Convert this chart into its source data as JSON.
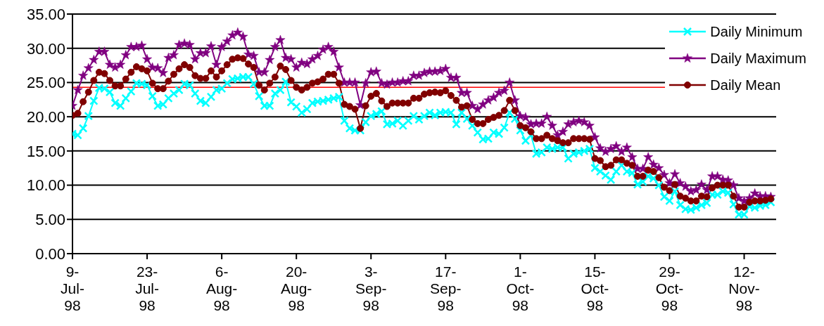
{
  "chart_data": {
    "type": "line",
    "x": [
      "1998-07-09",
      "1998-07-10",
      "1998-07-11",
      "1998-07-12",
      "1998-07-13",
      "1998-07-14",
      "1998-07-15",
      "1998-07-16",
      "1998-07-17",
      "1998-07-18",
      "1998-07-19",
      "1998-07-20",
      "1998-07-21",
      "1998-07-22",
      "1998-07-23",
      "1998-07-24",
      "1998-07-25",
      "1998-07-26",
      "1998-07-27",
      "1998-07-28",
      "1998-07-29",
      "1998-07-30",
      "1998-07-31",
      "1998-08-01",
      "1998-08-02",
      "1998-08-03",
      "1998-08-04",
      "1998-08-05",
      "1998-08-06",
      "1998-08-07",
      "1998-08-08",
      "1998-08-09",
      "1998-08-10",
      "1998-08-11",
      "1998-08-12",
      "1998-08-13",
      "1998-08-14",
      "1998-08-15",
      "1998-08-16",
      "1998-08-17",
      "1998-08-18",
      "1998-08-19",
      "1998-08-20",
      "1998-08-21",
      "1998-08-22",
      "1998-08-23",
      "1998-08-24",
      "1998-08-25",
      "1998-08-26",
      "1998-08-27",
      "1998-08-28",
      "1998-08-29",
      "1998-08-30",
      "1998-08-31",
      "1998-09-01",
      "1998-09-02",
      "1998-09-03",
      "1998-09-04",
      "1998-09-05",
      "1998-09-06",
      "1998-09-07",
      "1998-09-08",
      "1998-09-09",
      "1998-09-10",
      "1998-09-11",
      "1998-09-12",
      "1998-09-13",
      "1998-09-14",
      "1998-09-15",
      "1998-09-16",
      "1998-09-17",
      "1998-09-18",
      "1998-09-19",
      "1998-09-20",
      "1998-09-21",
      "1998-09-22",
      "1998-09-23",
      "1998-09-24",
      "1998-09-25",
      "1998-09-26",
      "1998-09-27",
      "1998-09-28",
      "1998-09-29",
      "1998-09-30",
      "1998-10-01",
      "1998-10-02",
      "1998-10-03",
      "1998-10-04",
      "1998-10-05",
      "1998-10-06",
      "1998-10-07",
      "1998-10-08",
      "1998-10-09",
      "1998-10-10",
      "1998-10-11",
      "1998-10-12",
      "1998-10-13",
      "1998-10-14",
      "1998-10-15",
      "1998-10-16",
      "1998-10-17",
      "1998-10-18",
      "1998-10-19",
      "1998-10-20",
      "1998-10-21",
      "1998-10-22",
      "1998-10-23",
      "1998-10-24",
      "1998-10-25",
      "1998-10-26",
      "1998-10-27",
      "1998-10-28",
      "1998-10-29",
      "1998-10-30",
      "1998-10-31",
      "1998-11-01",
      "1998-11-02",
      "1998-11-03",
      "1998-11-04",
      "1998-11-05",
      "1998-11-06",
      "1998-11-07",
      "1998-11-08",
      "1998-11-09",
      "1998-11-10",
      "1998-11-11",
      "1998-11-12",
      "1998-11-13",
      "1998-11-14",
      "1998-11-15",
      "1998-11-16",
      "1998-11-17"
    ],
    "series": [
      {
        "name": "Daily Minimum",
        "color": "#00ffff",
        "marker": "cross",
        "values": [
          17.5,
          17.3,
          18.3,
          20.1,
          22.3,
          24.2,
          24.1,
          23.6,
          22.0,
          21.6,
          22.7,
          23.7,
          24.9,
          24.8,
          24.6,
          23.0,
          21.6,
          21.8,
          22.7,
          23.4,
          23.9,
          24.8,
          24.6,
          23.4,
          22.3,
          22.0,
          22.9,
          23.9,
          24.1,
          24.9,
          25.5,
          25.6,
          25.8,
          25.8,
          24.8,
          23.0,
          21.6,
          21.6,
          23.4,
          23.9,
          25.1,
          22.1,
          21.5,
          20.6,
          21.1,
          22.0,
          22.2,
          22.3,
          22.5,
          22.7,
          22.9,
          19.4,
          18.3,
          18.0,
          18.0,
          19.2,
          20.1,
          20.4,
          20.8,
          18.9,
          19.0,
          19.4,
          18.7,
          19.4,
          20.1,
          19.6,
          20.1,
          20.6,
          20.2,
          20.6,
          20.7,
          20.6,
          18.9,
          20.6,
          19.7,
          18.7,
          17.7,
          16.7,
          16.8,
          17.7,
          17.5,
          18.4,
          20.6,
          19.7,
          18.0,
          16.5,
          17.3,
          14.6,
          14.8,
          15.5,
          15.3,
          15.5,
          15.5,
          13.9,
          14.6,
          14.8,
          15.0,
          15.3,
          12.5,
          12.0,
          11.4,
          10.8,
          12.0,
          12.9,
          12.0,
          11.8,
          10.1,
          10.5,
          11.3,
          11.0,
          10.0,
          8.3,
          7.7,
          9.1,
          7.1,
          6.5,
          6.4,
          6.7,
          7.1,
          7.4,
          8.6,
          8.6,
          9.1,
          8.9,
          7.2,
          5.7,
          5.7,
          6.9,
          6.7,
          7.0,
          7.1,
          7.5
        ]
      },
      {
        "name": "Daily Maximum",
        "color": "#800080",
        "marker": "star",
        "values": [
          21.6,
          23.9,
          26.0,
          27.1,
          28.3,
          29.5,
          29.5,
          27.6,
          27.2,
          27.6,
          29.0,
          30.2,
          30.2,
          30.4,
          28.4,
          27.2,
          27.1,
          26.4,
          28.6,
          29.0,
          30.5,
          30.7,
          30.5,
          28.4,
          29.3,
          29.3,
          30.3,
          27.6,
          30.2,
          31.0,
          31.9,
          32.3,
          31.7,
          29.1,
          28.9,
          26.5,
          26.5,
          28.3,
          30.2,
          31.2,
          28.6,
          28.4,
          27.2,
          27.9,
          27.7,
          28.4,
          28.9,
          29.8,
          30.2,
          29.5,
          27.2,
          25.0,
          25.0,
          25.0,
          21.7,
          24.9,
          26.5,
          26.6,
          24.9,
          24.7,
          25.0,
          25.0,
          25.2,
          25.2,
          26.0,
          26.0,
          26.4,
          26.6,
          26.6,
          26.7,
          27.0,
          25.7,
          25.7,
          23.5,
          23.5,
          21.6,
          21.1,
          21.8,
          22.4,
          22.8,
          23.5,
          23.8,
          25.0,
          22.4,
          20.1,
          19.9,
          18.9,
          19.0,
          19.0,
          20.0,
          18.7,
          17.3,
          17.8,
          18.9,
          19.2,
          19.4,
          19.2,
          18.7,
          17.0,
          15.4,
          14.9,
          15.3,
          15.7,
          14.9,
          15.5,
          14.1,
          12.4,
          12.4,
          14.1,
          13.0,
          12.5,
          11.5,
          10.3,
          11.6,
          10.3,
          9.8,
          9.1,
          9.3,
          10.1,
          9.3,
          11.3,
          11.3,
          10.8,
          10.7,
          10.0,
          8.1,
          7.7,
          8.1,
          8.8,
          8.4,
          8.4,
          8.3
        ]
      },
      {
        "name": "Daily Mean",
        "color": "#800000",
        "marker": "circle",
        "values": [
          20.2,
          20.5,
          22.2,
          23.6,
          25.3,
          26.5,
          26.3,
          25.3,
          24.5,
          24.5,
          25.5,
          26.5,
          27.3,
          27.0,
          26.7,
          24.9,
          24.1,
          24.1,
          25.2,
          26.2,
          27.0,
          27.6,
          27.2,
          26.0,
          25.6,
          25.6,
          26.7,
          25.8,
          26.7,
          27.6,
          28.4,
          28.6,
          28.5,
          27.7,
          27.2,
          24.6,
          23.9,
          24.9,
          25.8,
          27.4,
          26.9,
          25.3,
          24.3,
          23.9,
          24.3,
          24.9,
          25.1,
          25.5,
          26.2,
          26.2,
          24.9,
          21.8,
          21.5,
          21.1,
          18.3,
          21.6,
          23.0,
          23.4,
          22.3,
          21.5,
          22.0,
          22.0,
          22.0,
          22.0,
          22.7,
          22.7,
          23.3,
          23.5,
          23.6,
          23.5,
          23.8,
          23.1,
          22.4,
          21.4,
          21.6,
          19.6,
          19.0,
          19.0,
          19.6,
          19.9,
          20.2,
          20.9,
          22.4,
          20.9,
          18.7,
          18.4,
          17.8,
          16.8,
          16.8,
          17.3,
          16.8,
          16.5,
          16.2,
          16.2,
          16.8,
          16.8,
          16.8,
          16.7,
          13.9,
          13.6,
          12.7,
          12.9,
          13.7,
          13.7,
          13.2,
          12.9,
          11.3,
          11.3,
          12.2,
          12.0,
          11.1,
          9.7,
          9.2,
          10.1,
          8.4,
          8.1,
          7.7,
          7.7,
          8.4,
          8.3,
          9.6,
          10.0,
          10.0,
          10.0,
          8.4,
          6.8,
          6.8,
          7.5,
          7.7,
          7.7,
          7.8,
          8.0
        ]
      }
    ],
    "xlim": [
      "1998-07-09",
      "1998-11-18"
    ],
    "xticks": [
      {
        "value": "1998-07-09",
        "label": "9-Jul-98"
      },
      {
        "value": "1998-07-23",
        "label": "23-Jul-98"
      },
      {
        "value": "1998-08-06",
        "label": "6-Aug-98"
      },
      {
        "value": "1998-08-20",
        "label": "20-Aug-98"
      },
      {
        "value": "1998-09-03",
        "label": "3-Sep-98"
      },
      {
        "value": "1998-09-17",
        "label": "17-Sep-98"
      },
      {
        "value": "1998-10-01",
        "label": "1-Oct-98"
      },
      {
        "value": "1998-10-15",
        "label": "15-Oct-98"
      },
      {
        "value": "1998-10-29",
        "label": "29-Oct-98"
      },
      {
        "value": "1998-11-12",
        "label": "12-Nov-98"
      }
    ],
    "ylim": [
      0,
      35
    ],
    "yticks": [
      {
        "value": 0,
        "label": "0.00"
      },
      {
        "value": 5,
        "label": "5.00"
      },
      {
        "value": 10,
        "label": "10.00"
      },
      {
        "value": 15,
        "label": "15.00"
      },
      {
        "value": 20,
        "label": "20.00"
      },
      {
        "value": 25,
        "label": "25.00"
      },
      {
        "value": 30,
        "label": "30.00"
      },
      {
        "value": 35,
        "label": "35.00"
      }
    ],
    "ref_lines": [
      {
        "axis": "y",
        "value": 24.3,
        "color": "#ff0000"
      }
    ],
    "grid": "y",
    "legend": "top right"
  }
}
